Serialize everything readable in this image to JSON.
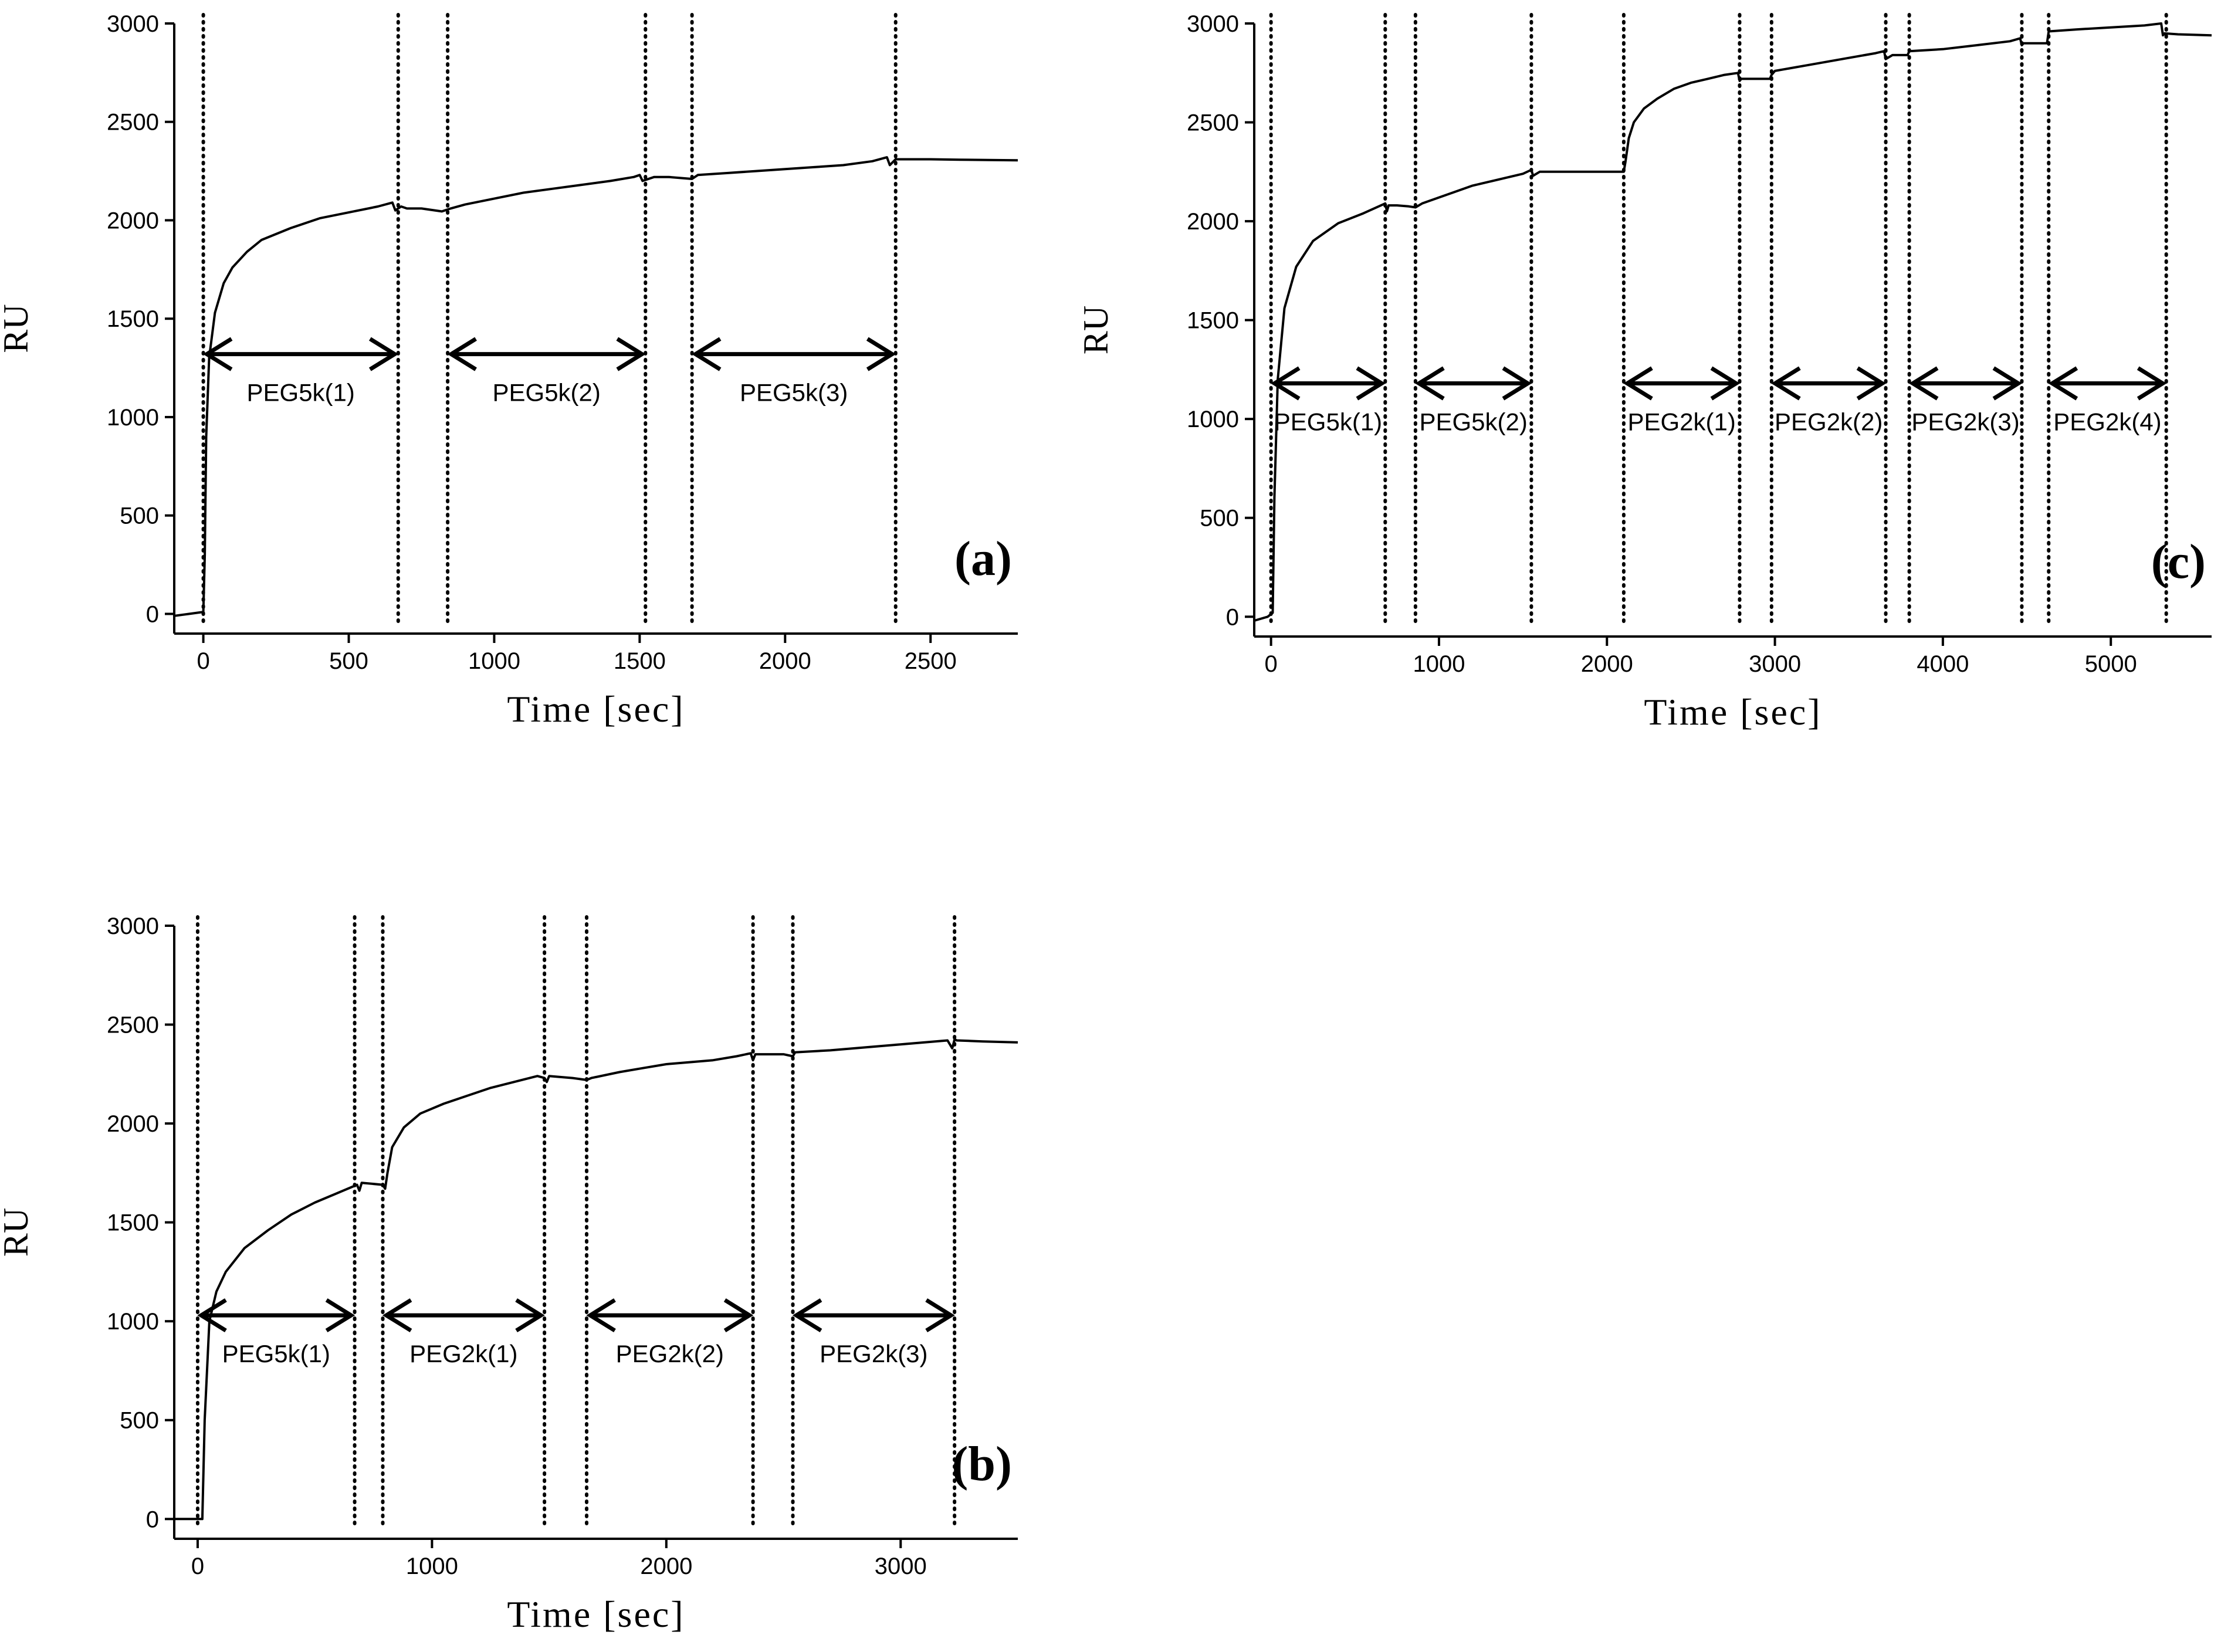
{
  "chart_data": [
    {
      "id": "a",
      "type": "line",
      "panel_label": "(a)",
      "xlabel": "Time [sec]",
      "ylabel": "RU",
      "xlim": [
        -100,
        2800
      ],
      "ylim": [
        -100,
        3000
      ],
      "xticks": [
        0,
        500,
        1000,
        1500,
        2000,
        2500
      ],
      "yticks": [
        0,
        500,
        1000,
        1500,
        2000,
        2500,
        3000
      ],
      "series": [
        {
          "x": [
            -100,
            -50,
            0,
            5,
            10,
            20,
            40,
            70,
            100,
            150,
            200,
            300,
            400,
            500,
            600,
            650,
            660,
            680,
            700,
            750,
            820,
            850,
            900,
            1000,
            1100,
            1200,
            1300,
            1400,
            1480,
            1500,
            1510,
            1550,
            1600,
            1680,
            1700,
            1800,
            1900,
            2000,
            2100,
            2200,
            2300,
            2350,
            2360,
            2380,
            2400,
            2500,
            2600,
            2700,
            2800
          ],
          "y": [
            -10,
            0,
            10,
            300,
            900,
            1300,
            1530,
            1680,
            1760,
            1840,
            1900,
            1960,
            2010,
            2040,
            2070,
            2090,
            2050,
            2070,
            2060,
            2060,
            2045,
            2060,
            2080,
            2110,
            2140,
            2160,
            2180,
            2200,
            2220,
            2230,
            2200,
            2220,
            2220,
            2210,
            2230,
            2240,
            2250,
            2260,
            2270,
            2280,
            2300,
            2320,
            2280,
            2310,
            2310,
            2310,
            2308,
            2306,
            2305
          ]
        }
      ],
      "vlines": [
        0,
        670,
        840,
        1520,
        1680,
        2380
      ],
      "intervals": [
        {
          "from": 0,
          "to": 670,
          "y": 1320,
          "label": "PEG5k(1)"
        },
        {
          "from": 840,
          "to": 1520,
          "y": 1320,
          "label": "PEG5k(2)"
        },
        {
          "from": 1680,
          "to": 2380,
          "y": 1320,
          "label": "PEG5k(3)"
        }
      ]
    },
    {
      "id": "c",
      "type": "line",
      "panel_label": "(c)",
      "xlabel": "Time [sec]",
      "ylabel": "RU",
      "xlim": [
        -100,
        5600
      ],
      "ylim": [
        -100,
        3000
      ],
      "xticks": [
        0,
        1000,
        2000,
        3000,
        4000,
        5000
      ],
      "yticks": [
        0,
        500,
        1000,
        1500,
        2000,
        2500,
        3000
      ],
      "series": [
        {
          "x": [
            -100,
            -20,
            10,
            20,
            40,
            80,
            150,
            250,
            400,
            550,
            680,
            690,
            700,
            750,
            820,
            860,
            900,
            1000,
            1100,
            1200,
            1300,
            1400,
            1500,
            1550,
            1560,
            1600,
            1800,
            2000,
            2100,
            2110,
            2130,
            2160,
            2220,
            2300,
            2400,
            2500,
            2600,
            2700,
            2780,
            2790,
            2800,
            2850,
            2970,
            2980,
            3000,
            3200,
            3400,
            3600,
            3650,
            3660,
            3700,
            3790,
            3800,
            4000,
            4200,
            4400,
            4460,
            4470,
            4480,
            4600,
            4620,
            4630,
            4800,
            5000,
            5200,
            5300,
            5310,
            5320,
            5400,
            5600
          ],
          "y": [
            -20,
            0,
            20,
            600,
            1200,
            1560,
            1770,
            1900,
            1990,
            2040,
            2090,
            2050,
            2080,
            2080,
            2075,
            2070,
            2090,
            2120,
            2150,
            2180,
            2200,
            2220,
            2240,
            2260,
            2230,
            2250,
            2250,
            2250,
            2250,
            2300,
            2420,
            2500,
            2570,
            2620,
            2670,
            2700,
            2720,
            2740,
            2750,
            2710,
            2720,
            2720,
            2720,
            2740,
            2760,
            2790,
            2820,
            2850,
            2860,
            2820,
            2840,
            2840,
            2860,
            2870,
            2890,
            2910,
            2925,
            2890,
            2900,
            2900,
            2900,
            2960,
            2970,
            2980,
            2990,
            3000,
            2940,
            2950,
            2945,
            2940
          ]
        }
      ],
      "vlines": [
        0,
        680,
        860,
        1550,
        2100,
        2790,
        2980,
        3660,
        3800,
        4470,
        4630,
        5330
      ],
      "intervals": [
        {
          "from": 0,
          "to": 680,
          "y": 1180,
          "label": "PEG5k(1)"
        },
        {
          "from": 860,
          "to": 1550,
          "y": 1180,
          "label": "PEG5k(2)"
        },
        {
          "from": 2100,
          "to": 2790,
          "y": 1180,
          "label": "PEG2k(1)"
        },
        {
          "from": 2980,
          "to": 3660,
          "y": 1180,
          "label": "PEG2k(2)"
        },
        {
          "from": 3800,
          "to": 4470,
          "y": 1180,
          "label": "PEG2k(3)"
        },
        {
          "from": 4630,
          "to": 5330,
          "y": 1180,
          "label": "PEG2k(4)"
        }
      ]
    },
    {
      "id": "b",
      "type": "line",
      "panel_label": "(b)",
      "xlabel": "Time [sec]",
      "ylabel": "RU",
      "xlim": [
        -100,
        3500
      ],
      "ylim": [
        -100,
        3000
      ],
      "xticks": [
        0,
        1000,
        2000,
        3000
      ],
      "yticks": [
        0,
        500,
        1000,
        1500,
        2000,
        2500,
        3000
      ],
      "series": [
        {
          "x": [
            -100,
            -20,
            20,
            30,
            50,
            80,
            120,
            200,
            300,
            400,
            500,
            600,
            680,
            690,
            700,
            790,
            800,
            810,
            830,
            880,
            950,
            1050,
            1150,
            1250,
            1350,
            1450,
            1480,
            1490,
            1500,
            1600,
            1660,
            1680,
            1800,
            1900,
            2000,
            2100,
            2200,
            2300,
            2360,
            2370,
            2380,
            2500,
            2540,
            2550,
            2700,
            2900,
            3100,
            3200,
            3220,
            3230,
            3240,
            3350,
            3500
          ],
          "y": [
            0,
            0,
            0,
            500,
            1000,
            1150,
            1250,
            1370,
            1460,
            1540,
            1600,
            1650,
            1690,
            1660,
            1700,
            1690,
            1670,
            1750,
            1880,
            1980,
            2050,
            2100,
            2140,
            2180,
            2210,
            2240,
            2230,
            2210,
            2240,
            2230,
            2220,
            2230,
            2260,
            2280,
            2300,
            2310,
            2320,
            2340,
            2355,
            2320,
            2350,
            2350,
            2340,
            2360,
            2370,
            2390,
            2410,
            2420,
            2380,
            2425,
            2420,
            2415,
            2410
          ]
        }
      ],
      "vlines": [
        0,
        670,
        790,
        1480,
        1660,
        2370,
        2540,
        3230
      ],
      "intervals": [
        {
          "from": 0,
          "to": 670,
          "y": 1030,
          "label": "PEG5k(1)"
        },
        {
          "from": 790,
          "to": 1480,
          "y": 1030,
          "label": "PEG2k(1)"
        },
        {
          "from": 1660,
          "to": 2370,
          "y": 1030,
          "label": "PEG2k(2)"
        },
        {
          "from": 2540,
          "to": 3230,
          "y": 1030,
          "label": "PEG2k(3)"
        }
      ]
    }
  ]
}
